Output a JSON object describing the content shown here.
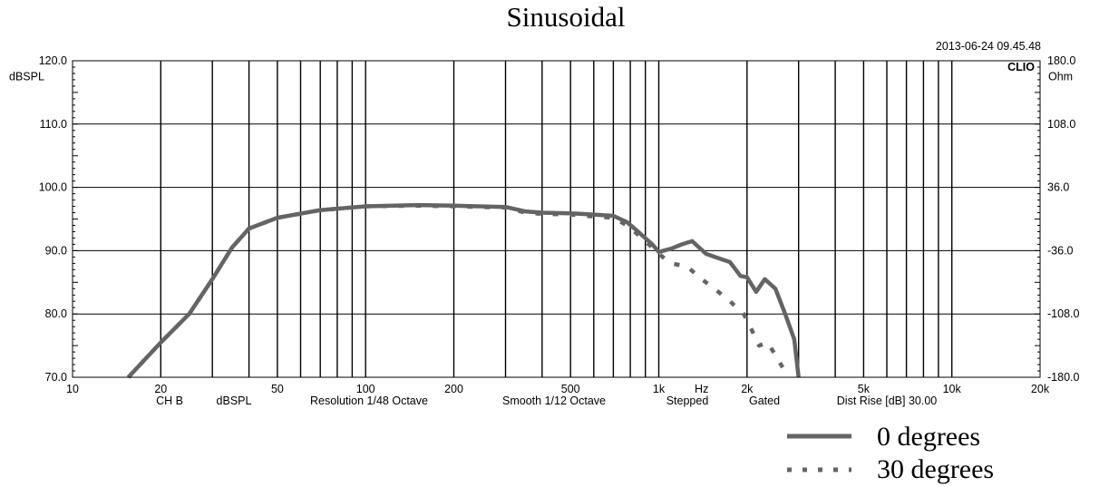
{
  "chart_data": {
    "type": "line",
    "title": "Sinusoidal",
    "timestamp": "2013-06-24 09.45.48",
    "brand": "CLIO",
    "x_scale": "log",
    "xlim": [
      10,
      20000
    ],
    "x_ticks": [
      {
        "value": 10,
        "label": "10"
      },
      {
        "value": 20,
        "label": "20"
      },
      {
        "value": 50,
        "label": "50"
      },
      {
        "value": 100,
        "label": "100"
      },
      {
        "value": 200,
        "label": "200"
      },
      {
        "value": 500,
        "label": "500"
      },
      {
        "value": 1000,
        "label": "1k"
      },
      {
        "value": 2000,
        "label": "2k"
      },
      {
        "value": 5000,
        "label": "5k"
      },
      {
        "value": 10000,
        "label": "10k"
      },
      {
        "value": 20000,
        "label": "20k"
      }
    ],
    "x_unit_label": "Hz",
    "x_unit_value": 1400,
    "gridlines_x": [
      20,
      30,
      40,
      50,
      60,
      70,
      80,
      90,
      100,
      200,
      300,
      400,
      500,
      600,
      700,
      800,
      900,
      1000,
      2000,
      3000,
      4000,
      5000,
      6000,
      7000,
      8000,
      9000,
      10000
    ],
    "ylim": [
      70,
      120
    ],
    "y_ticks": [
      {
        "value": 120,
        "label": "120.0"
      },
      {
        "value": 110,
        "label": "110.0"
      },
      {
        "value": 100,
        "label": "100.0"
      },
      {
        "value": 90,
        "label": "90.0"
      },
      {
        "value": 80,
        "label": "80.0"
      },
      {
        "value": 70,
        "label": "70.0"
      }
    ],
    "ylabel": "dBSPL",
    "ylabel_value": 117.5,
    "y2lim": [
      -180,
      180
    ],
    "y2_ticks": [
      {
        "value": 180,
        "label": "180.0"
      },
      {
        "value": 108,
        "label": "108.0"
      },
      {
        "value": 36,
        "label": "36.0"
      },
      {
        "value": -36,
        "label": "-36.0"
      },
      {
        "value": -108,
        "label": "-108.0"
      },
      {
        "value": -180,
        "label": "-180.0"
      }
    ],
    "y2label": "Ohm",
    "y2label_value": 162,
    "info_line": {
      "channel": "CH B",
      "unit": "dBSPL",
      "resolution": "Resolution 1/48 Octave",
      "smooth": "Smooth 1/12 Octave",
      "mode": "Stepped",
      "gate": "Gated",
      "dist": "Dist Rise [dB] 30.00"
    },
    "series": [
      {
        "name": "0 degrees",
        "style": "solid",
        "color": "#646464",
        "points": [
          [
            15.5,
            70
          ],
          [
            20,
            75.5
          ],
          [
            25,
            80
          ],
          [
            30,
            85.5
          ],
          [
            35,
            90.5
          ],
          [
            40,
            93.5
          ],
          [
            50,
            95.2
          ],
          [
            70,
            96.4
          ],
          [
            100,
            97.0
          ],
          [
            150,
            97.2
          ],
          [
            200,
            97.1
          ],
          [
            300,
            96.9
          ],
          [
            350,
            96.2
          ],
          [
            400,
            96.0
          ],
          [
            500,
            95.9
          ],
          [
            600,
            95.7
          ],
          [
            700,
            95.5
          ],
          [
            780,
            94.5
          ],
          [
            850,
            93.0
          ],
          [
            950,
            91.0
          ],
          [
            1000,
            89.8
          ],
          [
            1100,
            90.3
          ],
          [
            1200,
            91.0
          ],
          [
            1300,
            91.5
          ],
          [
            1450,
            89.5
          ],
          [
            1600,
            88.8
          ],
          [
            1750,
            88.2
          ],
          [
            1900,
            86.0
          ],
          [
            2000,
            85.8
          ],
          [
            2150,
            83.5
          ],
          [
            2300,
            85.5
          ],
          [
            2500,
            84.0
          ],
          [
            2700,
            80.0
          ],
          [
            2900,
            76.0
          ],
          [
            3000,
            70.0
          ]
        ]
      },
      {
        "name": "30 degrees",
        "style": "dotted",
        "color": "#646464",
        "points": [
          [
            15.5,
            70
          ],
          [
            20,
            75.5
          ],
          [
            25,
            80
          ],
          [
            30,
            85.5
          ],
          [
            35,
            90.5
          ],
          [
            40,
            93.5
          ],
          [
            50,
            95.2
          ],
          [
            70,
            96.4
          ],
          [
            100,
            97.0
          ],
          [
            150,
            97.1
          ],
          [
            200,
            97.0
          ],
          [
            300,
            96.8
          ],
          [
            350,
            96.0
          ],
          [
            400,
            95.8
          ],
          [
            500,
            95.7
          ],
          [
            600,
            95.4
          ],
          [
            700,
            95.2
          ],
          [
            780,
            94.0
          ],
          [
            850,
            92.5
          ],
          [
            950,
            90.5
          ],
          [
            1000,
            89.5
          ],
          [
            1100,
            88.0
          ],
          [
            1250,
            87.5
          ],
          [
            1400,
            85.5
          ],
          [
            1550,
            84.0
          ],
          [
            1750,
            82.0
          ],
          [
            1950,
            80.0
          ],
          [
            2100,
            77.0
          ],
          [
            2200,
            75.0
          ],
          [
            2350,
            75.5
          ],
          [
            2500,
            73.5
          ],
          [
            2650,
            71.5
          ],
          [
            2800,
            70.5
          ]
        ]
      }
    ],
    "legend": [
      {
        "label": "0 degrees",
        "style": "solid"
      },
      {
        "label": "30 degrees",
        "style": "dotted"
      }
    ]
  }
}
